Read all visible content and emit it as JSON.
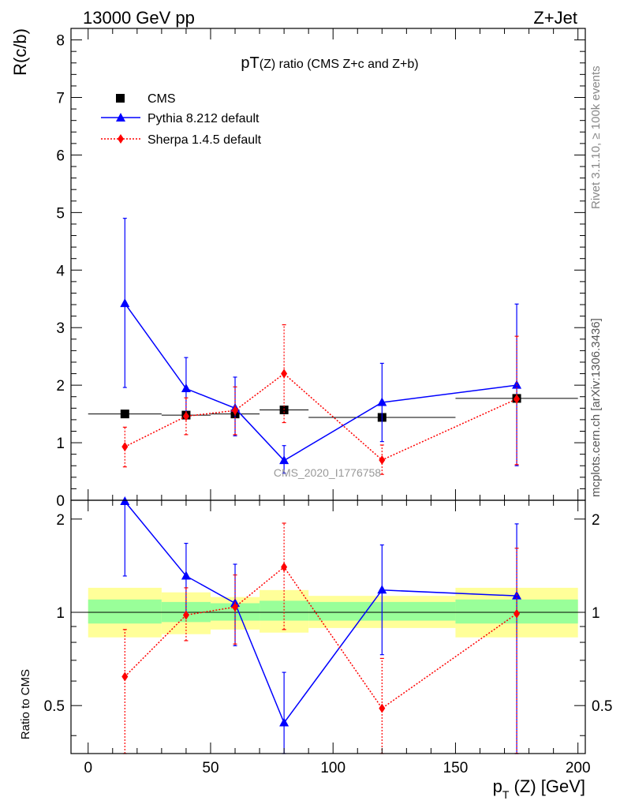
{
  "header": {
    "left": "13000 GeV pp",
    "right": "Z+Jet",
    "side_rivet": "Rivet 3.1.10, ≥ 100k events",
    "side_mcplots": "mcplots.cern.ch [arXiv:1306.3436]",
    "watermark": "CMS_2020_I1776758"
  },
  "colors": {
    "data": "#000000",
    "pythia": "#0000ff",
    "sherpa": "#ff0000",
    "band_inner": "#99ff99",
    "band_outer": "#ffff99"
  },
  "chart_data": [
    {
      "type": "scatter",
      "title_main": "pT",
      "title_sub": "(Z)",
      "title_rest": " ratio (CMS  Z+c and Z+b)",
      "ylabel": "R(c/b)",
      "xlim": [
        -7,
        203
      ],
      "ylim": [
        0,
        8.2
      ],
      "yticks": [
        "0",
        "1",
        "2",
        "3",
        "4",
        "5",
        "6",
        "7",
        "8"
      ],
      "legend_position": "top-left",
      "series": [
        {
          "name": "CMS",
          "style": "data",
          "marker": "square",
          "x": [
            15,
            40,
            60,
            80,
            120,
            175
          ],
          "y": [
            1.5,
            1.48,
            1.5,
            1.57,
            1.44,
            1.77
          ],
          "xerr": [
            [
              15,
              15
            ],
            [
              10,
              10
            ],
            [
              10,
              10
            ],
            [
              10,
              10
            ],
            [
              30,
              30
            ],
            [
              25,
              25
            ]
          ]
        },
        {
          "name": "Pythia 8.212 default",
          "style": "pythia",
          "marker": "triangle",
          "x": [
            15,
            40,
            60,
            80,
            120,
            175
          ],
          "y": [
            3.42,
            1.94,
            1.6,
            0.69,
            1.7,
            2.0
          ],
          "ylow": [
            1.96,
            1.48,
            1.12,
            0.47,
            1.02,
            0.6
          ],
          "yhigh": [
            4.9,
            2.48,
            2.14,
            0.95,
            2.38,
            3.41
          ]
        },
        {
          "name": "Sherpa 1.4.5 default",
          "style": "sherpa",
          "marker": "diamond",
          "x": [
            15,
            40,
            60,
            80,
            120,
            175
          ],
          "y": [
            0.93,
            1.46,
            1.56,
            2.2,
            0.7,
            1.76
          ],
          "ylow": [
            0.58,
            1.14,
            1.14,
            1.35,
            0.45,
            0.62
          ],
          "yhigh": [
            1.27,
            1.78,
            1.97,
            3.05,
            0.96,
            2.85
          ]
        }
      ]
    },
    {
      "type": "scatter",
      "ylabel": "Ratio to CMS",
      "xlabel": "p_T (Z) [GeV]",
      "xlabel_main": "p",
      "xlabel_sub": "T",
      "xlabel_rest": " (Z) [GeV]",
      "xlim": [
        -7,
        203
      ],
      "ylim": [
        0.35,
        2.3
      ],
      "yscale": "log",
      "yticks": [
        "0.5",
        "1",
        "2"
      ],
      "xticks": [
        "0",
        "50",
        "100",
        "150",
        "200"
      ],
      "bands": [
        {
          "xlo": 0,
          "xhi": 30,
          "inner": [
            0.92,
            1.1
          ],
          "outer": [
            0.83,
            1.2
          ]
        },
        {
          "xlo": 30,
          "xhi": 50,
          "inner": [
            0.93,
            1.08
          ],
          "outer": [
            0.85,
            1.16
          ]
        },
        {
          "xlo": 50,
          "xhi": 70,
          "inner": [
            0.94,
            1.07
          ],
          "outer": [
            0.88,
            1.12
          ]
        },
        {
          "xlo": 70,
          "xhi": 90,
          "inner": [
            0.94,
            1.09
          ],
          "outer": [
            0.86,
            1.18
          ]
        },
        {
          "xlo": 90,
          "xhi": 150,
          "inner": [
            0.94,
            1.08
          ],
          "outer": [
            0.89,
            1.13
          ]
        },
        {
          "xlo": 150,
          "xhi": 200,
          "inner": [
            0.92,
            1.1
          ],
          "outer": [
            0.83,
            1.2
          ]
        }
      ],
      "series": [
        {
          "name": "Pythia 8.212 default",
          "style": "pythia",
          "marker": "triangle",
          "x": [
            15,
            40,
            60,
            80,
            120,
            175
          ],
          "y": [
            2.28,
            1.31,
            1.07,
            0.44,
            1.18,
            1.13
          ],
          "ylow": [
            1.31,
            1.0,
            0.78,
            0.3,
            0.73,
            0.34
          ],
          "yhigh": [
            3.27,
            1.67,
            1.43,
            0.64,
            1.65,
            1.93
          ]
        },
        {
          "name": "Sherpa 1.4.5 default",
          "style": "sherpa",
          "marker": "diamond",
          "x": [
            15,
            40,
            60,
            80,
            120,
            175
          ],
          "y": [
            0.62,
            0.98,
            1.04,
            1.4,
            0.49,
            0.99
          ],
          "ylow": [
            0.35,
            0.81,
            0.79,
            0.88,
            0.34,
            0.34
          ],
          "yhigh": [
            0.88,
            1.2,
            1.32,
            1.94,
            0.71,
            1.61
          ]
        }
      ]
    }
  ]
}
